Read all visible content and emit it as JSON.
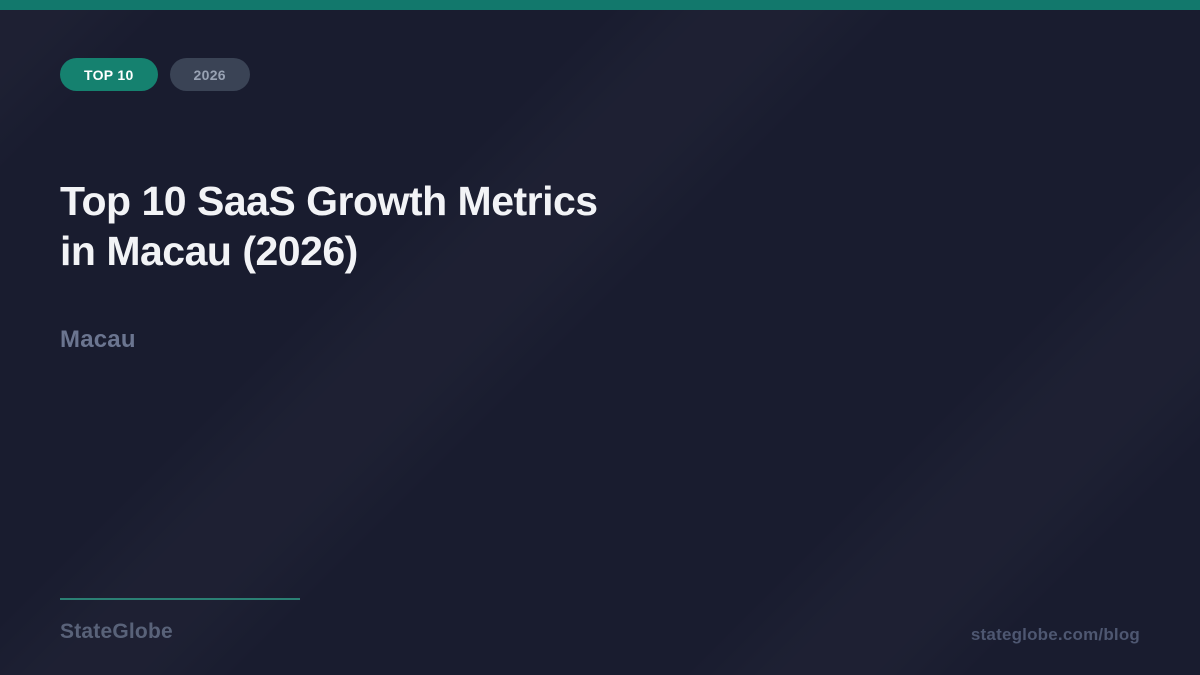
{
  "card": {
    "badges": {
      "primary_label": "TOP 10",
      "secondary_label": "2026"
    },
    "title_line1": "Top 10 SaaS Growth Metrics",
    "title_line2": "in Macau (2026)",
    "subtitle": "Macau",
    "footer": {
      "brand": "StateGlobe",
      "url": "stateglobe.com/blog"
    },
    "colors": {
      "accent_teal": "#12786c",
      "badge_teal": "#15816f",
      "badge_slate": "#3a4355",
      "badge_slate_text": "#98a2b3",
      "background": "#191c2f",
      "title_text": "#f2f3f6",
      "subtitle_text": "#6b7590",
      "divider_teal": "#2b8074",
      "brand_text": "#596279",
      "url_text": "#4e5771"
    }
  }
}
